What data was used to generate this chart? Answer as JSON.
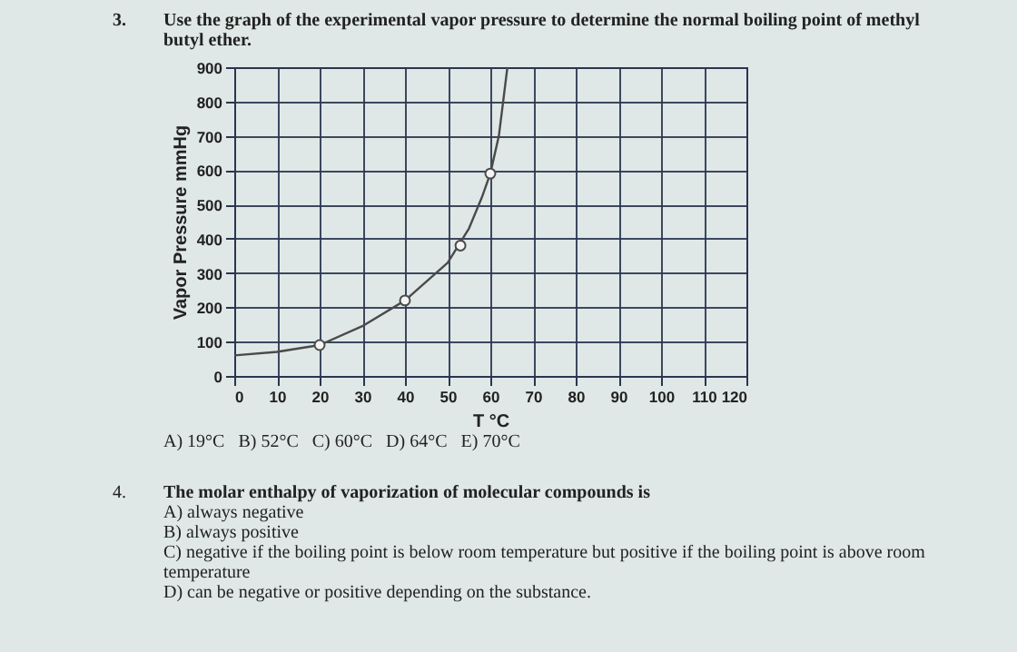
{
  "chart_data": {
    "type": "line",
    "title": "Use the graph of the experimental vapor pressure to determine the normal boiling point of methyl butyl ether.",
    "xlabel": "T °C",
    "ylabel": "Vapor Pressure mmHg",
    "xlim": [
      0,
      120
    ],
    "ylim": [
      0,
      900
    ],
    "xticks": [
      0,
      10,
      20,
      30,
      40,
      50,
      60,
      70,
      80,
      90,
      100,
      110,
      120
    ],
    "yticks": [
      0,
      100,
      200,
      300,
      400,
      500,
      600,
      700,
      800,
      900
    ],
    "grid": true,
    "line_style": "solid",
    "series": [
      {
        "type": "line",
        "color": "#4a4a4a",
        "x": [
          0,
          10,
          20,
          30,
          40,
          50,
          55,
          58,
          60,
          62,
          63,
          64
        ],
        "values": [
          60,
          70,
          90,
          145,
          220,
          330,
          430,
          520,
          590,
          700,
          800,
          900
        ]
      },
      {
        "type": "scatter",
        "marker": "circle",
        "color": "#4a4a4a",
        "x": [
          20,
          40,
          53,
          60
        ],
        "values": [
          90,
          220,
          380,
          590
        ]
      }
    ],
    "annotations": [
      "3.",
      "A) 19°C   B) 52°C   C) 60°C   D) 64°C   E) 70°C",
      "4.",
      "The molar enthalpy of vaporization of molecular compounds is",
      "A) always negative",
      "B) always positive",
      "C) negative if the boiling point is below room temperature but positive if the boiling point is above room temperature",
      "D) can be negative or positive depending on the substance."
    ]
  }
}
